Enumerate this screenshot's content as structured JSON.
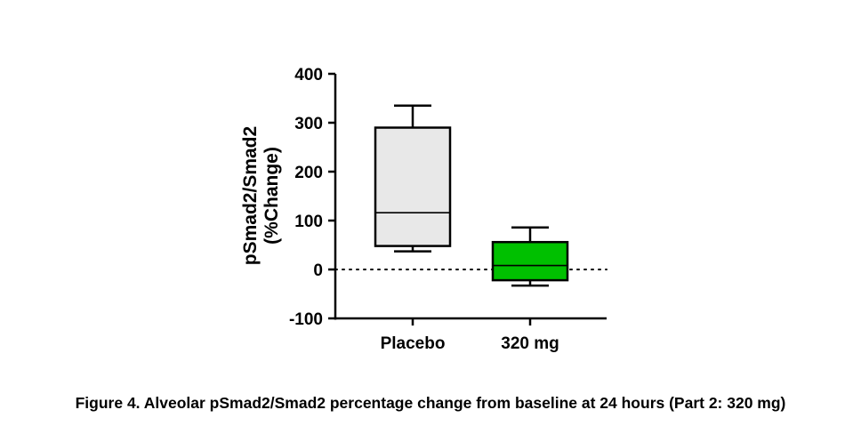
{
  "chart_data": {
    "type": "boxplot",
    "title": "",
    "ylabel": "pSmad2/Smad2",
    "ylabel_unit": "(%Change)",
    "xlabel": "",
    "ylim": [
      -100,
      400
    ],
    "yticks": [
      -100,
      0,
      100,
      200,
      300,
      400
    ],
    "reference_line": {
      "y": 0,
      "style": "dotted"
    },
    "categories": [
      "Placebo",
      "320 mg"
    ],
    "series": [
      {
        "name": "Placebo",
        "min": 37,
        "q1": 48,
        "median": 116,
        "q3": 290,
        "max": 335,
        "fill": "#e8e8e8"
      },
      {
        "name": "320 mg",
        "min": -33,
        "q1": -22,
        "median": 8,
        "q3": 56,
        "max": 86,
        "fill": "#00c000"
      }
    ]
  },
  "caption": "Figure 4. Alveolar pSmad2/Smad2 percentage change from baseline at 24 hours (Part 2: 320 mg)"
}
